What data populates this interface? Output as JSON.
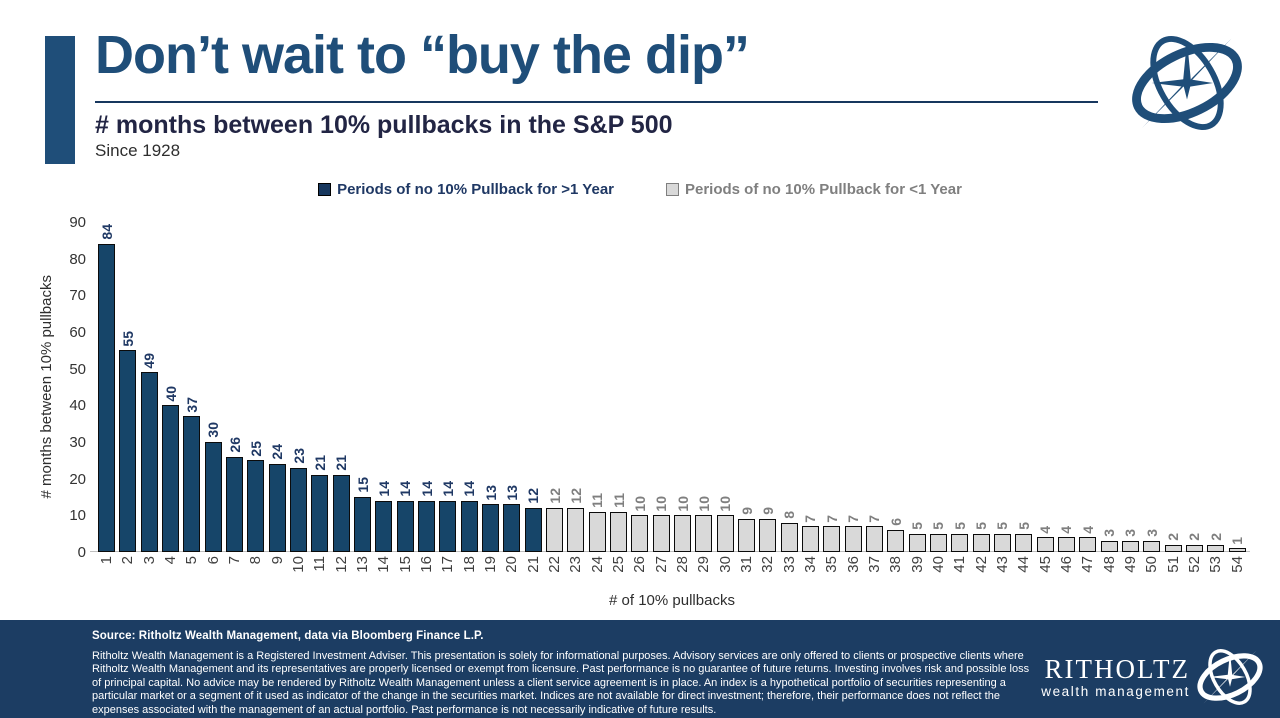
{
  "colors": {
    "accent_navy": "#1F4E79",
    "bar_navy": "#164569",
    "bar_gray": "#D9D9D9",
    "bar_border": "#0B0B0B",
    "legend_navy_text": "#1F3864",
    "legend_gray_text": "#7F7F7F",
    "subtitle_text": "#222544",
    "footer_bg": "#1C3D63"
  },
  "header": {
    "title": "Don’t wait to “buy the dip”",
    "subtitle": "# months between 10% pullbacks in the S&P 500",
    "since": "Since 1928"
  },
  "legend": {
    "items": [
      {
        "label": "Periods of no 10% Pullback for >1 Year",
        "swatch": "#17375E",
        "swatch_border": "#000000",
        "text_color": "#1F3864"
      },
      {
        "label": "Periods of no 10% Pullback for <1 Year",
        "swatch": "#D9D9D9",
        "swatch_border": "#7F7F7F",
        "text_color": "#7F7F7F"
      }
    ]
  },
  "chart_data": {
    "type": "bar",
    "title": "# months between 10% pullbacks in the S&P 500",
    "subtitle": "Since 1928",
    "xlabel": "# of 10% pullbacks",
    "ylabel": "# months between 10% pullbacks",
    "ylim": [
      0,
      90
    ],
    "yticks": [
      0,
      10,
      20,
      30,
      40,
      50,
      60,
      70,
      80,
      90
    ],
    "grid": false,
    "legend_position": "top",
    "bar_labels": "rotated 90deg, shown above each bar",
    "categories": [
      1,
      2,
      3,
      4,
      5,
      6,
      7,
      8,
      9,
      10,
      11,
      12,
      13,
      14,
      15,
      16,
      17,
      18,
      19,
      20,
      21,
      22,
      23,
      24,
      25,
      26,
      27,
      28,
      29,
      30,
      31,
      32,
      33,
      34,
      35,
      36,
      37,
      38,
      39,
      40,
      41,
      42,
      43,
      44,
      45,
      46,
      47,
      48,
      49,
      50,
      51,
      52,
      53,
      54
    ],
    "values": [
      84,
      55,
      49,
      40,
      37,
      30,
      26,
      25,
      24,
      23,
      21,
      21,
      15,
      14,
      14,
      14,
      14,
      14,
      13,
      13,
      12,
      12,
      12,
      11,
      11,
      10,
      10,
      10,
      10,
      10,
      9,
      9,
      8,
      7,
      7,
      7,
      7,
      6,
      5,
      5,
      5,
      5,
      5,
      5,
      4,
      4,
      4,
      3,
      3,
      3,
      2,
      2,
      2,
      1
    ],
    "navy_first_n": 21,
    "series": [
      {
        "name": "Periods of no 10% Pullback for >1 Year",
        "color": "#164569",
        "values": [
          84,
          55,
          49,
          40,
          37,
          30,
          26,
          25,
          24,
          23,
          21,
          21,
          15,
          14,
          14,
          14,
          14,
          14,
          13,
          13,
          12
        ]
      },
      {
        "name": "Periods of no 10% Pullback for <1 Year",
        "color": "#D9D9D9",
        "values": [
          12,
          12,
          11,
          11,
          10,
          10,
          10,
          10,
          10,
          9,
          9,
          8,
          7,
          7,
          7,
          7,
          6,
          5,
          5,
          5,
          5,
          5,
          5,
          4,
          4,
          4,
          3,
          3,
          3,
          2,
          2,
          2,
          1
        ]
      }
    ]
  },
  "footer": {
    "source": "Source: Ritholtz Wealth Management, data via Bloomberg Finance L.P.",
    "disclaimer": "Ritholtz Wealth Management is a Registered Investment Adviser. This presentation is solely for informational purposes. Advisory services are only offered to clients or prospective clients where Ritholtz Wealth Management and its representatives are properly licensed or exempt from licensure. Past performance is no guarantee of future returns. Investing involves risk and possible loss of principal capital. No advice may be rendered by Ritholtz Wealth Management unless a client service agreement is in place. An index is a hypothetical portfolio of securities representing a particular market or a segment of it used as indicator of the change in the securities market. Indices are not available for direct investment; therefore, their performance does not reflect the expenses associated with the management of an actual portfolio. Past performance is not necessarily indicative of future results.",
    "brand_name": "RITHOLTZ",
    "brand_tagline": "wealth management"
  }
}
